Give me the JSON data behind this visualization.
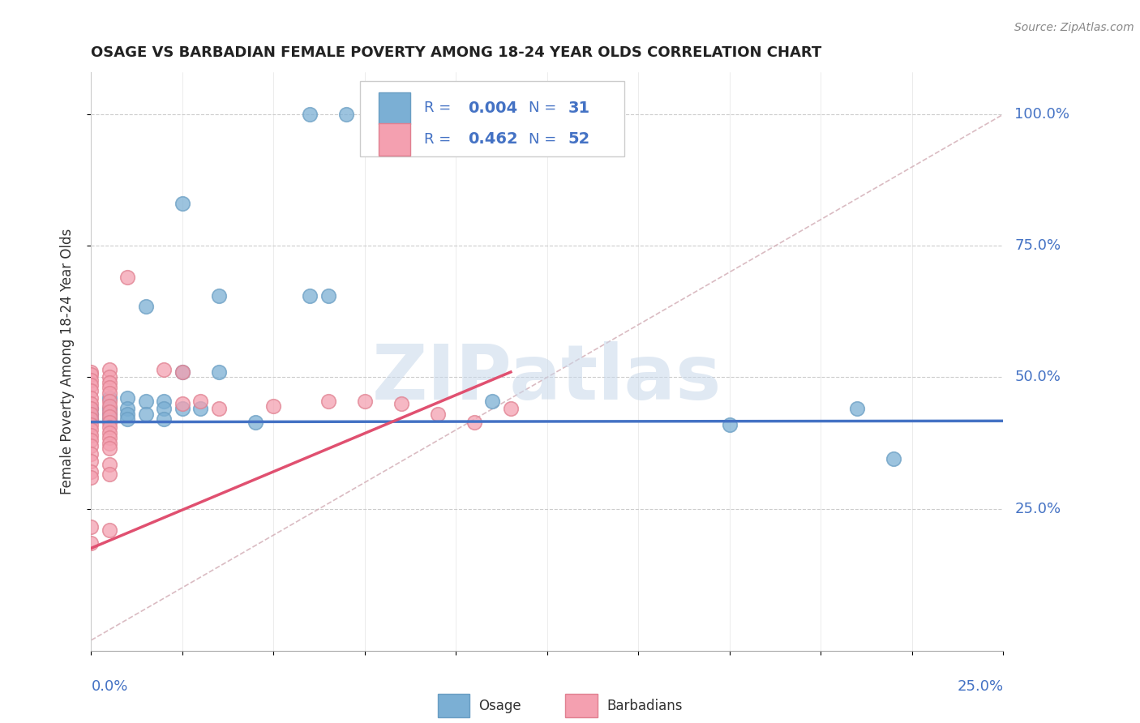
{
  "title": "OSAGE VS BARBADIAN FEMALE POVERTY AMONG 18-24 YEAR OLDS CORRELATION CHART",
  "source": "Source: ZipAtlas.com",
  "ylabel": "Female Poverty Among 18-24 Year Olds",
  "ytick_labels": [
    "100.0%",
    "75.0%",
    "50.0%",
    "25.0%"
  ],
  "ytick_values": [
    1.0,
    0.75,
    0.5,
    0.25
  ],
  "xlim": [
    0.0,
    0.25
  ],
  "ylim": [
    -0.02,
    1.08
  ],
  "watermark": "ZIPatlas",
  "osage_color": "#7bafd4",
  "osage_edge_color": "#6a9ec3",
  "barbadian_color": "#f4a0b0",
  "barbadian_edge_color": "#e08090",
  "osage_line_color": "#4472c4",
  "barbadian_line_color": "#e05070",
  "diagonal_color": "#d4b0b8",
  "osage_points": [
    [
      0.06,
      1.0
    ],
    [
      0.07,
      1.0
    ],
    [
      0.025,
      0.83
    ],
    [
      0.015,
      0.635
    ],
    [
      0.035,
      0.655
    ],
    [
      0.06,
      0.655
    ],
    [
      0.065,
      0.655
    ],
    [
      0.025,
      0.51
    ],
    [
      0.035,
      0.51
    ],
    [
      0.005,
      0.46
    ],
    [
      0.01,
      0.46
    ],
    [
      0.015,
      0.455
    ],
    [
      0.02,
      0.455
    ],
    [
      0.0,
      0.44
    ],
    [
      0.005,
      0.44
    ],
    [
      0.01,
      0.44
    ],
    [
      0.02,
      0.44
    ],
    [
      0.025,
      0.44
    ],
    [
      0.03,
      0.44
    ],
    [
      0.0,
      0.43
    ],
    [
      0.005,
      0.43
    ],
    [
      0.01,
      0.43
    ],
    [
      0.015,
      0.43
    ],
    [
      0.0,
      0.42
    ],
    [
      0.005,
      0.42
    ],
    [
      0.01,
      0.42
    ],
    [
      0.02,
      0.42
    ],
    [
      0.045,
      0.415
    ],
    [
      0.11,
      0.455
    ],
    [
      0.175,
      0.41
    ],
    [
      0.21,
      0.44
    ],
    [
      0.22,
      0.345
    ]
  ],
  "barbadian_points": [
    [
      0.0,
      0.51
    ],
    [
      0.005,
      0.515
    ],
    [
      0.0,
      0.505
    ],
    [
      0.005,
      0.5
    ],
    [
      0.0,
      0.495
    ],
    [
      0.005,
      0.49
    ],
    [
      0.0,
      0.485
    ],
    [
      0.005,
      0.48
    ],
    [
      0.0,
      0.475
    ],
    [
      0.005,
      0.47
    ],
    [
      0.0,
      0.46
    ],
    [
      0.005,
      0.455
    ],
    [
      0.0,
      0.45
    ],
    [
      0.005,
      0.445
    ],
    [
      0.0,
      0.44
    ],
    [
      0.005,
      0.435
    ],
    [
      0.0,
      0.43
    ],
    [
      0.005,
      0.425
    ],
    [
      0.0,
      0.42
    ],
    [
      0.005,
      0.415
    ],
    [
      0.0,
      0.41
    ],
    [
      0.005,
      0.405
    ],
    [
      0.0,
      0.4
    ],
    [
      0.005,
      0.395
    ],
    [
      0.0,
      0.39
    ],
    [
      0.005,
      0.385
    ],
    [
      0.0,
      0.38
    ],
    [
      0.005,
      0.375
    ],
    [
      0.0,
      0.37
    ],
    [
      0.005,
      0.365
    ],
    [
      0.0,
      0.355
    ],
    [
      0.0,
      0.34
    ],
    [
      0.005,
      0.335
    ],
    [
      0.0,
      0.32
    ],
    [
      0.005,
      0.315
    ],
    [
      0.0,
      0.31
    ],
    [
      0.0,
      0.215
    ],
    [
      0.005,
      0.21
    ],
    [
      0.0,
      0.185
    ],
    [
      0.01,
      0.69
    ],
    [
      0.02,
      0.515
    ],
    [
      0.025,
      0.51
    ],
    [
      0.025,
      0.45
    ],
    [
      0.03,
      0.455
    ],
    [
      0.035,
      0.44
    ],
    [
      0.05,
      0.445
    ],
    [
      0.065,
      0.455
    ],
    [
      0.075,
      0.455
    ],
    [
      0.085,
      0.45
    ],
    [
      0.095,
      0.43
    ],
    [
      0.105,
      0.415
    ],
    [
      0.115,
      0.44
    ]
  ],
  "osage_trendline": [
    [
      0.0,
      0.415
    ],
    [
      0.25,
      0.417
    ]
  ],
  "barbadian_trendline": [
    [
      0.0,
      0.175
    ],
    [
      0.115,
      0.51
    ]
  ],
  "diagonal_line": [
    [
      0.0,
      0.0
    ],
    [
      0.25,
      1.0
    ]
  ]
}
